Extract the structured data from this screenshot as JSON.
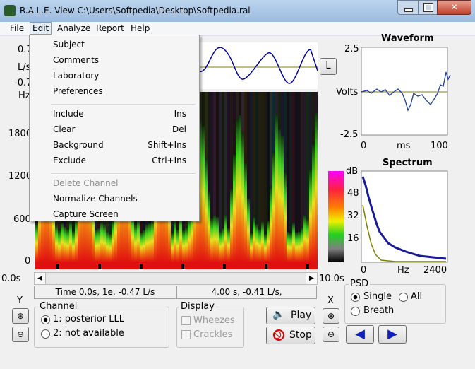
{
  "window": {
    "title": "R.A.L.E. View C:\\Users\\Softpedia\\Desktop\\Softpedia.ral"
  },
  "menu": [
    "File",
    "Edit",
    "Analyze",
    "Report",
    "Help"
  ],
  "edit_menu": [
    {
      "label": "Subject"
    },
    {
      "label": "Comments"
    },
    {
      "label": "Laboratory"
    },
    {
      "label": "Preferences"
    },
    {
      "label": "Include",
      "shortcut": "Ins"
    },
    {
      "label": "Clear",
      "shortcut": "Del"
    },
    {
      "label": "Background",
      "shortcut": "Shift+Ins"
    },
    {
      "label": "Exclude",
      "shortcut": "Ctrl+Ins"
    },
    {
      "label": "Delete Channel",
      "disabled": true
    },
    {
      "label": "Normalize Channels"
    },
    {
      "label": "Capture Screen"
    }
  ],
  "main_plot": {
    "y_top": "0.7",
    "y_unit": "L/s",
    "y_bottom": "-0.7",
    "freq_unit": "Hz",
    "freq_ticks": [
      "1800",
      "1200",
      "600",
      "0"
    ],
    "button": "L",
    "time_start": "0.0s",
    "time_end": "10.0s",
    "status": [
      "Time 0.0s, 1e, -0.47 L/s",
      "4.00 s, -0.41 L/s,"
    ]
  },
  "waveform": {
    "title": "Waveform",
    "y_top": "2.5",
    "y_label": "Volts",
    "y_bottom": "-2.5",
    "x_start": "0",
    "x_label": "ms",
    "x_end": "100"
  },
  "spectrum": {
    "title": "Spectrum",
    "colorbar": [
      "dB",
      "48",
      "32",
      "16"
    ],
    "x_start": "0",
    "x_label": "Hz",
    "x_end": "2400"
  },
  "psd": {
    "title": "PSD",
    "options": [
      "Single",
      "All",
      "Breath"
    ]
  },
  "zoom": {
    "y": "Y",
    "x": "X"
  },
  "channel": {
    "title": "Channel",
    "options": [
      "1: posterior LLL",
      "2: not available"
    ]
  },
  "display": {
    "title": "Display",
    "options": [
      "Wheezes",
      "Crackles"
    ]
  },
  "buttons": {
    "play": "Play",
    "stop": "Stop"
  }
}
